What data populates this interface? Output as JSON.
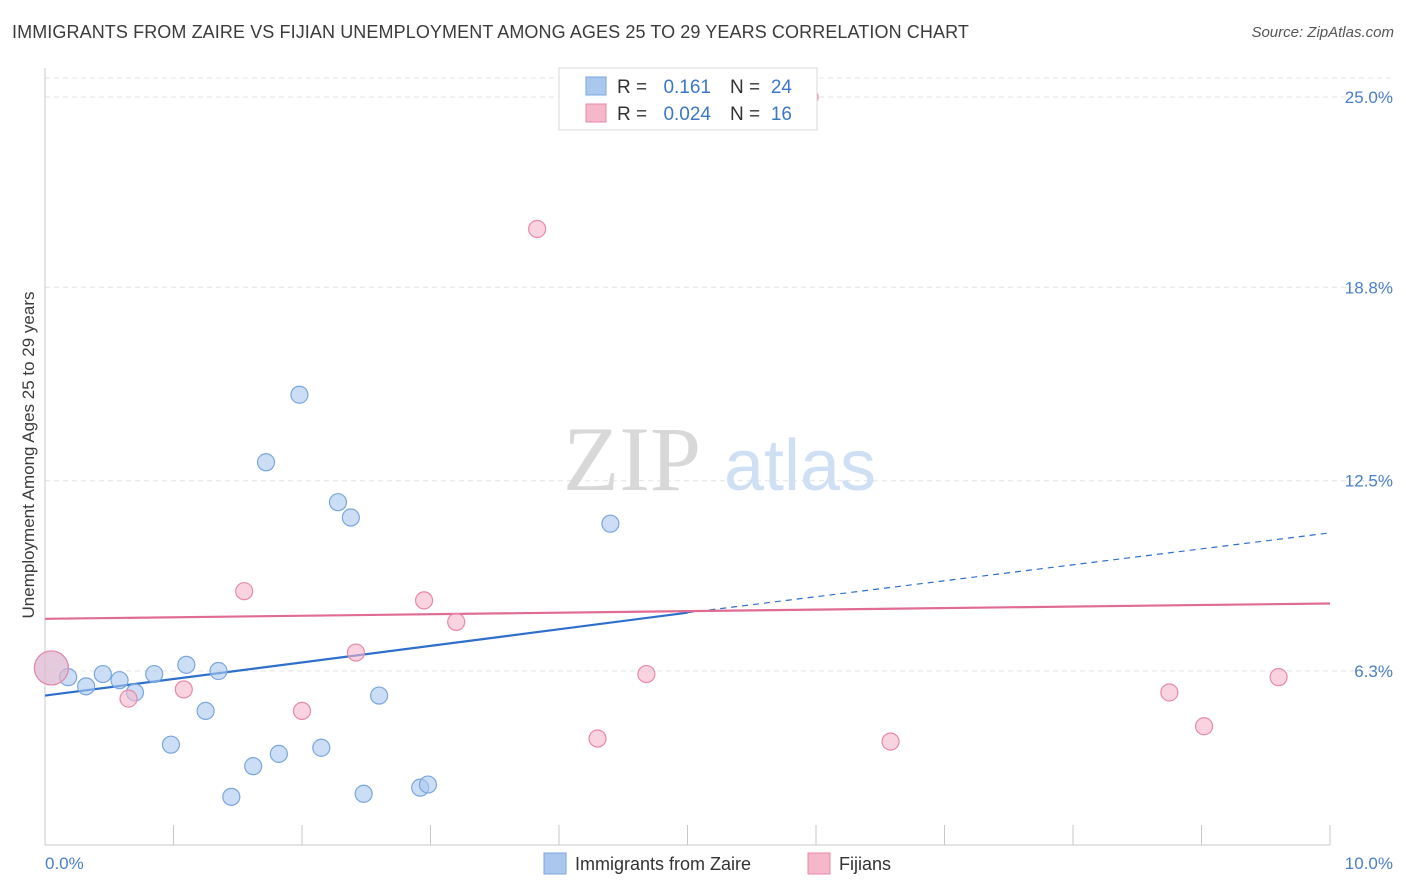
{
  "title": "IMMIGRANTS FROM ZAIRE VS FIJIAN UNEMPLOYMENT AMONG AGES 25 TO 29 YEARS CORRELATION CHART",
  "source": "Source: ZipAtlas.com",
  "watermark": {
    "zip": "ZIP",
    "atlas": "atlas"
  },
  "chart_data": {
    "type": "scatter",
    "xlabel": "",
    "ylabel": "Unemployment Among Ages 25 to 29 years",
    "xlim": [
      0,
      10
    ],
    "ylim": [
      0,
      25.5
    ],
    "x_tick_labels": {
      "min": "0.0%",
      "max": "10.0%"
    },
    "y_ticks": [
      {
        "value": 6.3,
        "label": "6.3%"
      },
      {
        "value": 12.5,
        "label": "12.5%"
      },
      {
        "value": 18.8,
        "label": "18.8%"
      },
      {
        "value": 25.0,
        "label": "25.0%"
      }
    ],
    "legend": {
      "position": "top-center",
      "rows": [
        {
          "r_label": "R =",
          "r_value": "0.161",
          "n_label": "N =",
          "n_value": "24",
          "color": "#aac8ee"
        },
        {
          "r_label": "R =",
          "r_value": "0.024",
          "n_label": "N =",
          "n_value": "16",
          "color": "#f5b8cb"
        }
      ]
    },
    "series": [
      {
        "name": "Immigrants from Zaire",
        "color": "#aac8ee",
        "stroke": "#7aa6dd",
        "line_color": "#2f6fcc",
        "trend": {
          "x0": 0.0,
          "y0": 5.5,
          "x1": 5.0,
          "y1": 8.2,
          "dash_to_x": 10.0,
          "dash_to_y": 10.8
        },
        "points": [
          {
            "x": 0.05,
            "y": 6.4,
            "big": true
          },
          {
            "x": 0.18,
            "y": 6.1
          },
          {
            "x": 0.32,
            "y": 5.8
          },
          {
            "x": 0.45,
            "y": 6.2
          },
          {
            "x": 0.58,
            "y": 6.0
          },
          {
            "x": 0.7,
            "y": 5.6
          },
          {
            "x": 0.85,
            "y": 6.2
          },
          {
            "x": 0.98,
            "y": 3.9
          },
          {
            "x": 1.1,
            "y": 6.5
          },
          {
            "x": 1.25,
            "y": 5.0
          },
          {
            "x": 1.35,
            "y": 6.3
          },
          {
            "x": 1.45,
            "y": 2.2
          },
          {
            "x": 1.62,
            "y": 3.2
          },
          {
            "x": 1.72,
            "y": 13.1
          },
          {
            "x": 1.82,
            "y": 3.6
          },
          {
            "x": 1.98,
            "y": 15.3
          },
          {
            "x": 2.15,
            "y": 3.8
          },
          {
            "x": 2.28,
            "y": 11.8
          },
          {
            "x": 2.38,
            "y": 11.3
          },
          {
            "x": 2.48,
            "y": 2.3
          },
          {
            "x": 2.6,
            "y": 5.5
          },
          {
            "x": 2.92,
            "y": 2.5
          },
          {
            "x": 2.98,
            "y": 2.6
          },
          {
            "x": 4.4,
            "y": 11.1
          }
        ]
      },
      {
        "name": "Fijians",
        "color": "#f5b8cb",
        "stroke": "#e889a6",
        "line_color": "#e06b93",
        "trend": {
          "x0": 0.0,
          "y0": 8.0,
          "x1": 10.0,
          "y1": 8.5
        },
        "points": [
          {
            "x": 0.05,
            "y": 6.4,
            "big": true
          },
          {
            "x": 0.65,
            "y": 5.4
          },
          {
            "x": 1.08,
            "y": 5.7
          },
          {
            "x": 1.55,
            "y": 8.9
          },
          {
            "x": 2.0,
            "y": 5.0
          },
          {
            "x": 2.42,
            "y": 6.9
          },
          {
            "x": 2.95,
            "y": 8.6
          },
          {
            "x": 3.2,
            "y": 7.9
          },
          {
            "x": 3.83,
            "y": 20.7
          },
          {
            "x": 4.3,
            "y": 4.1
          },
          {
            "x": 4.68,
            "y": 6.2
          },
          {
            "x": 5.95,
            "y": 25.0
          },
          {
            "x": 6.58,
            "y": 4.0
          },
          {
            "x": 8.75,
            "y": 5.6
          },
          {
            "x": 9.02,
            "y": 4.5
          },
          {
            "x": 9.6,
            "y": 6.1
          }
        ]
      }
    ]
  }
}
